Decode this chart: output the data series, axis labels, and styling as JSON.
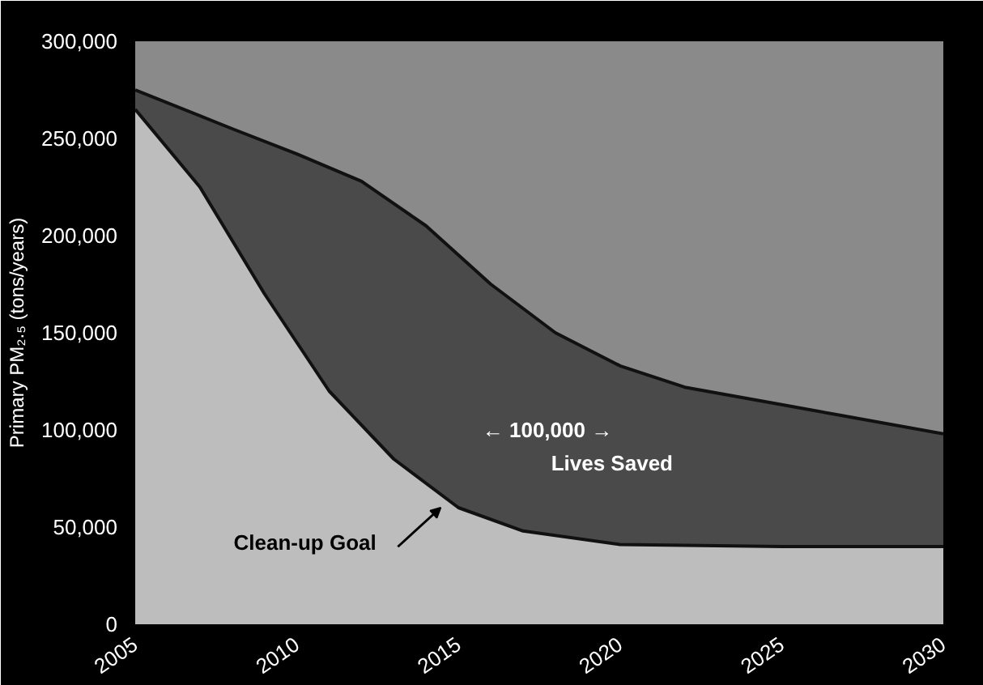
{
  "chart_data": {
    "type": "area",
    "ylabel": "Primary PM₂.₅ (tons/years)",
    "xlim": [
      2005,
      2030
    ],
    "xticks": [
      2005,
      2010,
      2015,
      2020,
      2025,
      2030
    ],
    "ylim": [
      0,
      300000
    ],
    "yticks": [
      {
        "value": 0,
        "label": "0"
      },
      {
        "value": 50000,
        "label": "50,000"
      },
      {
        "value": 100000,
        "label": "100,000"
      },
      {
        "value": 150000,
        "label": "150,000"
      },
      {
        "value": 200000,
        "label": "200,000"
      },
      {
        "value": 250000,
        "label": "250,000"
      },
      {
        "value": 300000,
        "label": "300,000"
      }
    ],
    "grid": false,
    "series": [
      {
        "color": "#4a4a4a",
        "x": [
          2005,
          2008,
          2010,
          2012,
          2014,
          2016,
          2018,
          2020,
          2022,
          2025,
          2030
        ],
        "values": [
          275000,
          255000,
          242000,
          228000,
          205000,
          175000,
          150000,
          133000,
          122000,
          113000,
          98000
        ]
      },
      {
        "color": "#bdbdbd",
        "x": [
          2005,
          2007,
          2009,
          2011,
          2013,
          2015,
          2017,
          2020,
          2025,
          2030
        ],
        "values": [
          265000,
          225000,
          170000,
          120000,
          85000,
          60000,
          48000,
          41000,
          40000,
          40000
        ]
      }
    ],
    "annotations": [
      "← 100,000 →",
      "Lives Saved",
      "Clean-up Goal"
    ]
  }
}
